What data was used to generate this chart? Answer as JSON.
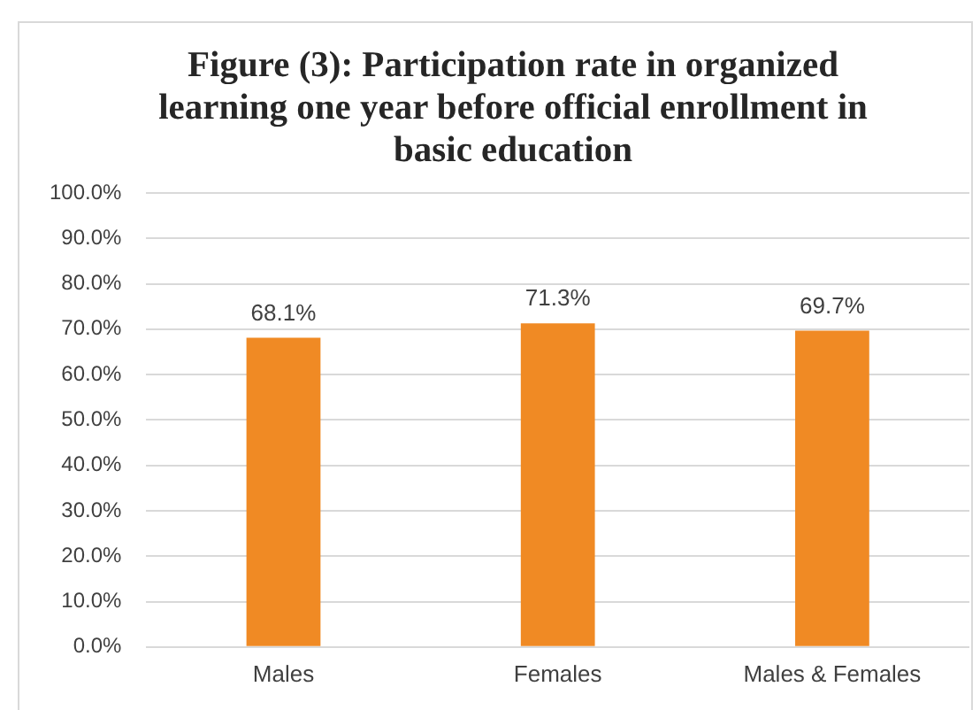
{
  "chart_data": {
    "type": "bar",
    "title": "Figure (3): Participation rate in organized learning one year before official enrollment in basic education",
    "categories": [
      "Males",
      "Females",
      "Males & Females"
    ],
    "values": [
      68.1,
      71.3,
      69.7
    ],
    "color": "#f08a24",
    "value_labels": [
      "68.1%",
      "71.3%",
      "69.7%"
    ],
    "ylim": [
      0,
      100
    ],
    "yticks": [
      {
        "value": 0,
        "label": "0.0%"
      },
      {
        "value": 10,
        "label": "10.0%"
      },
      {
        "value": 20,
        "label": "20.0%"
      },
      {
        "value": 30,
        "label": "30.0%"
      },
      {
        "value": 40,
        "label": "40.0%"
      },
      {
        "value": 50,
        "label": "50.0%"
      },
      {
        "value": 60,
        "label": "60.0%"
      },
      {
        "value": 70,
        "label": "70.0%"
      },
      {
        "value": 80,
        "label": "80.0%"
      },
      {
        "value": 90,
        "label": "90.0%"
      },
      {
        "value": 100,
        "label": "100.0%"
      }
    ],
    "grid": "y"
  }
}
